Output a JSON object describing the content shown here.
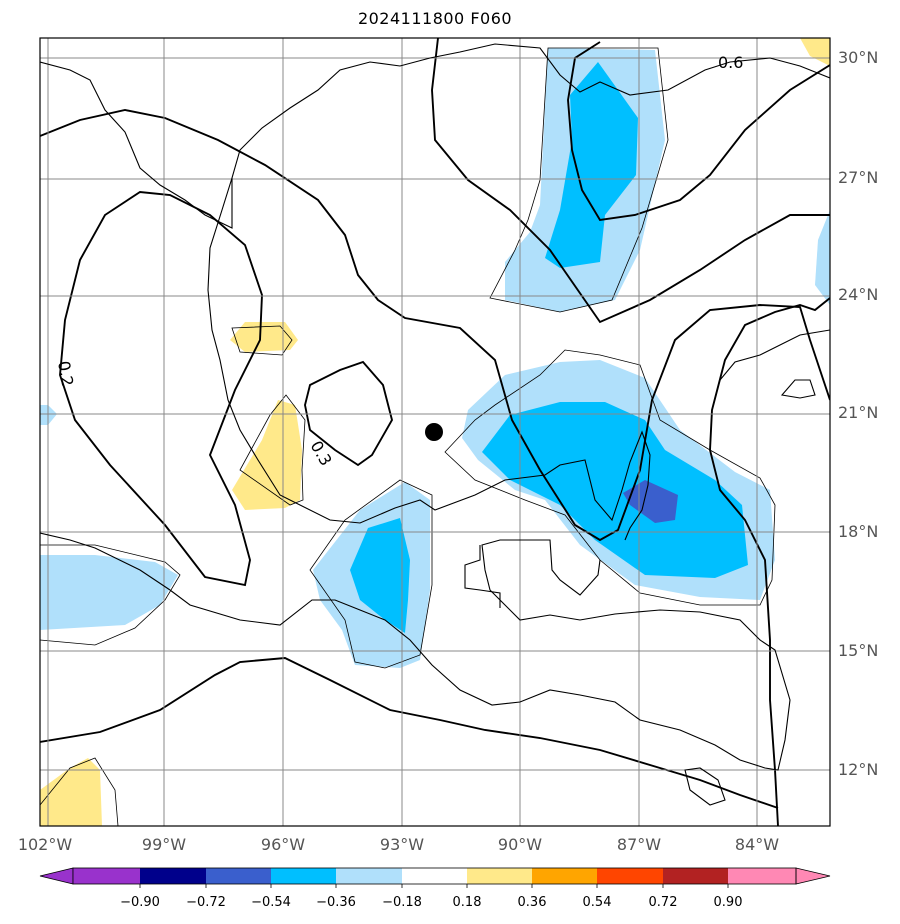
{
  "title": "2024111800 F060",
  "lat_labels": [
    "30°N",
    "27°N",
    "24°N",
    "21°N",
    "18°N",
    "15°N",
    "12°N"
  ],
  "lon_labels": [
    "102°W",
    "99°W",
    "96°W",
    "93°W",
    "90°W",
    "87°W",
    "84°W"
  ],
  "contour_labels": [
    "0.6",
    "0.2",
    "0.3"
  ],
  "colorbar": {
    "ticks": [
      "−0.90",
      "−0.72",
      "−0.54",
      "−0.36",
      "−0.18",
      "0.18",
      "0.36",
      "0.54",
      "0.72",
      "0.90"
    ],
    "colors": [
      "#9932cc",
      "#00008b",
      "#3a5fcd",
      "#00bfff",
      "#b0e0fb",
      "#ffffff",
      "#ffe98a",
      "#ffa500",
      "#ff4500",
      "#b22222",
      "#ff88b4"
    ]
  },
  "marker": {
    "name": "storm-center",
    "lon": -92.2,
    "lat": 20.5
  }
}
